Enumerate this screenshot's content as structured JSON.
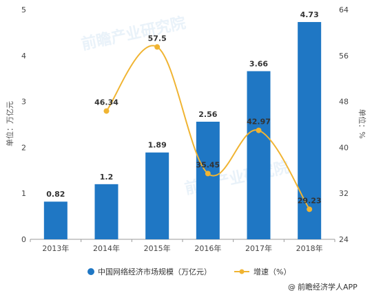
{
  "chart_data": {
    "type": "bar",
    "categories": [
      "2013年",
      "2014年",
      "2015年",
      "2016年",
      "2017年",
      "2018年"
    ],
    "series": [
      {
        "name": "中国网络经济市场规模（万亿元）",
        "type": "bar",
        "axis": "left",
        "values": [
          0.82,
          1.2,
          1.89,
          2.56,
          3.66,
          4.73
        ],
        "labels": [
          "0.82",
          "1.2",
          "1.89",
          "2.56",
          "3.66",
          "4.73"
        ],
        "color": "#1f77c4"
      },
      {
        "name": "增速（%）",
        "type": "line",
        "axis": "right",
        "values": [
          null,
          46.34,
          57.5,
          35.45,
          42.97,
          29.23
        ],
        "labels": [
          "",
          "46.34",
          "57.5",
          "35.45",
          "42.97",
          "29.23"
        ],
        "color": "#f0b432"
      }
    ],
    "ylabel": "单位：万亿元",
    "y2label": "单位：%",
    "ylim": [
      0,
      5
    ],
    "yticks": [
      "0",
      "1",
      "2",
      "3",
      "4",
      "5"
    ],
    "y2lim": [
      24,
      64
    ],
    "y2ticks": [
      "24",
      "32",
      "40",
      "48",
      "56",
      "64"
    ],
    "grid": false,
    "legend_position": "bottom"
  },
  "source": {
    "icon": "at-icon",
    "text": "前瞻经济学人APP"
  },
  "watermark": {
    "text": "前瞻产业研究院"
  }
}
